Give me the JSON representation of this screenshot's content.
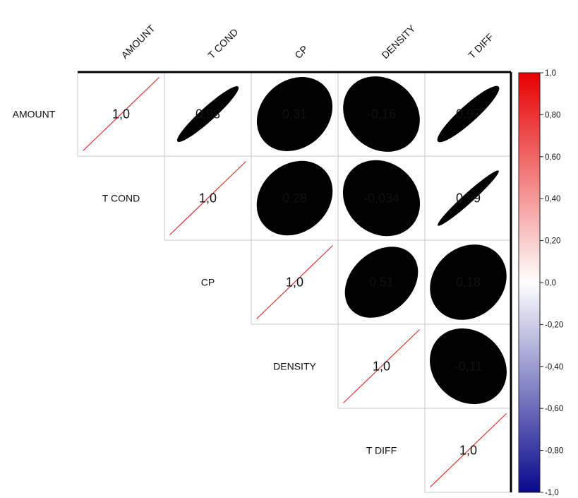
{
  "chart_data": {
    "type": "heatmap",
    "variables": [
      "AMOUNT",
      "T COND",
      "CP",
      "DENSITY",
      "T DIFF"
    ],
    "matrix_upper": [
      {
        "row": "AMOUNT",
        "col": "AMOUNT",
        "value": 1.0,
        "label": "1,0"
      },
      {
        "row": "AMOUNT",
        "col": "T COND",
        "value": 0.98,
        "label": "0,98"
      },
      {
        "row": "AMOUNT",
        "col": "CP",
        "value": 0.31,
        "label": "0,31"
      },
      {
        "row": "AMOUNT",
        "col": "DENSITY",
        "value": -0.16,
        "label": "-0,16"
      },
      {
        "row": "AMOUNT",
        "col": "T DIFF",
        "value": 0.97,
        "label": "0,97"
      },
      {
        "row": "T COND",
        "col": "T COND",
        "value": 1.0,
        "label": "1,0"
      },
      {
        "row": "T COND",
        "col": "CP",
        "value": 0.28,
        "label": "0,28"
      },
      {
        "row": "T COND",
        "col": "DENSITY",
        "value": -0.034,
        "label": "-0,034"
      },
      {
        "row": "T COND",
        "col": "T DIFF",
        "value": 0.99,
        "label": "0,99"
      },
      {
        "row": "CP",
        "col": "CP",
        "value": 1.0,
        "label": "1,0"
      },
      {
        "row": "CP",
        "col": "DENSITY",
        "value": 0.51,
        "label": "0,51"
      },
      {
        "row": "CP",
        "col": "T DIFF",
        "value": 0.18,
        "label": "0,18"
      },
      {
        "row": "DENSITY",
        "col": "DENSITY",
        "value": 1.0,
        "label": "1,0"
      },
      {
        "row": "DENSITY",
        "col": "T DIFF",
        "value": -0.11,
        "label": "-0,11"
      },
      {
        "row": "T DIFF",
        "col": "T DIFF",
        "value": 1.0,
        "label": "1,0"
      }
    ],
    "colorbar": {
      "range": [
        -1.0,
        1.0
      ],
      "low_color": "#08088c",
      "mid_color": "#ffffff",
      "high_color": "#e60000",
      "ticks": [
        "1,0",
        "0,80",
        "0,60",
        "0,40",
        "0,20",
        "0,0",
        "-0,20",
        "-0,40",
        "-0,60",
        "-0,80",
        "-1,0"
      ]
    }
  }
}
